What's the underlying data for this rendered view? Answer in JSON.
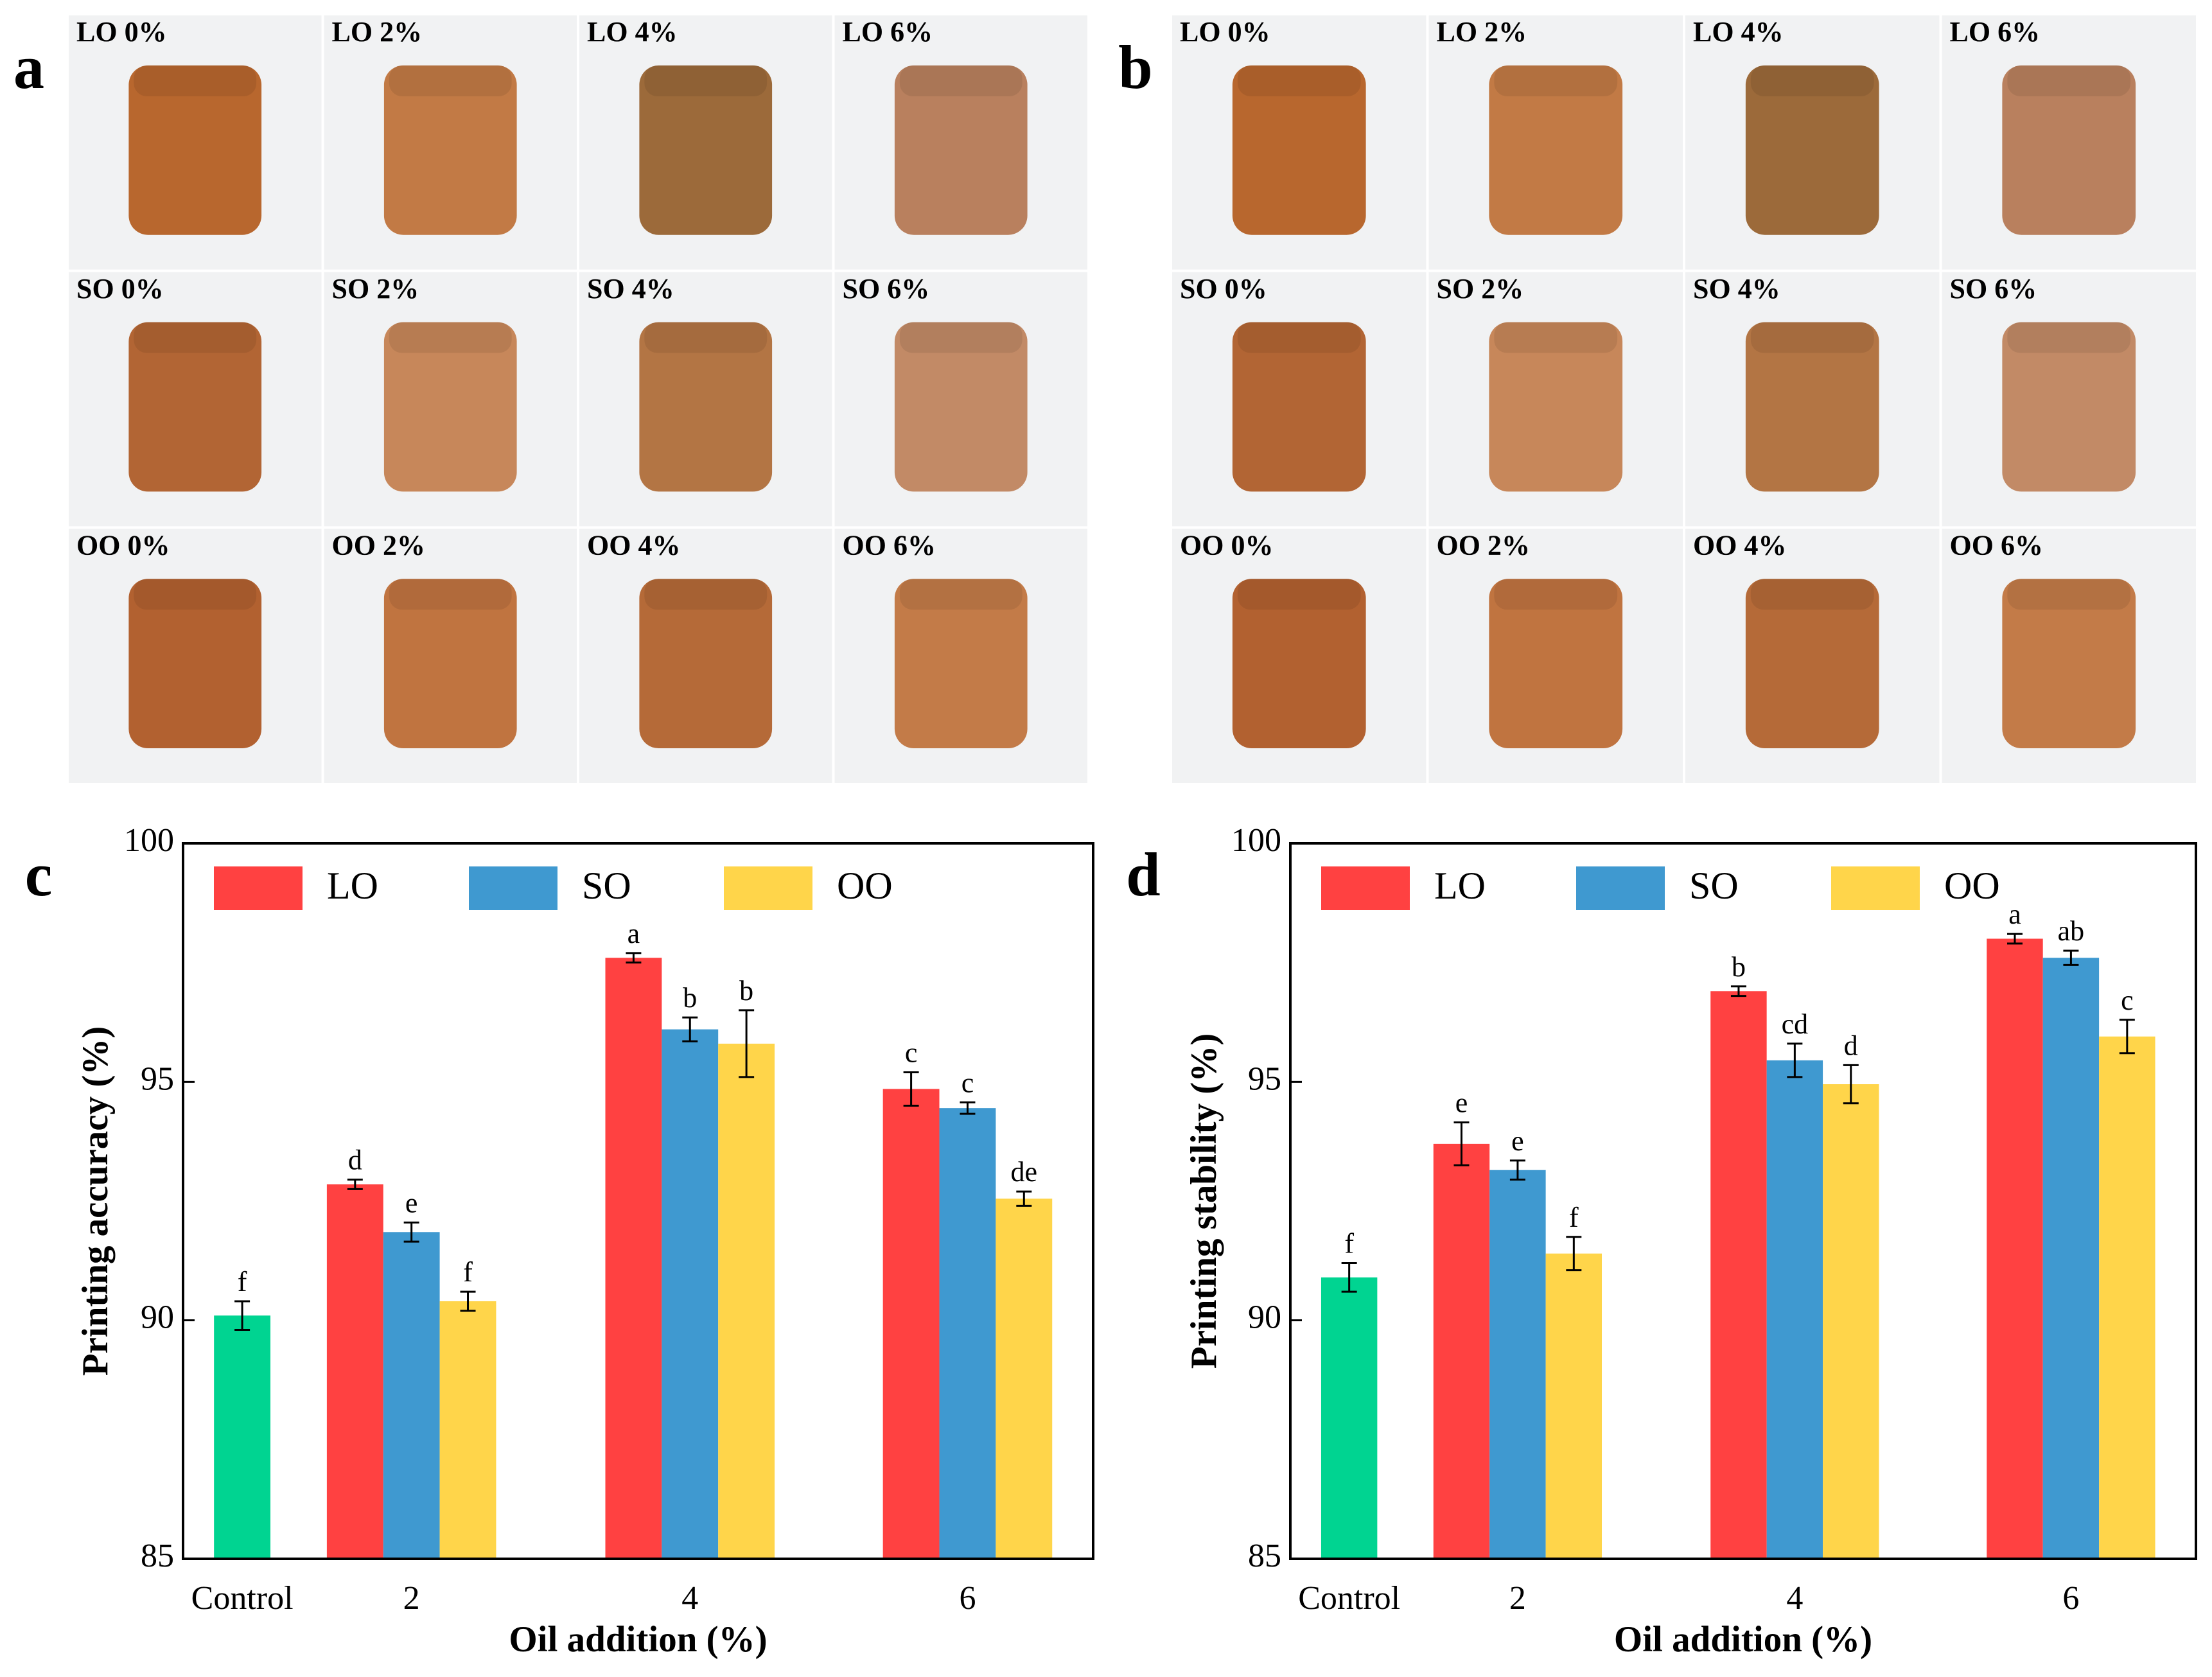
{
  "photo_panels": [
    {
      "label": "a",
      "cells": [
        "LO 0%",
        "LO 2%",
        "LO 4%",
        "LO 6%",
        "SO 0%",
        "SO 2%",
        "SO 4%",
        "SO 6%",
        "OO 0%",
        "OO 2%",
        "OO 4%",
        "OO 6%"
      ]
    },
    {
      "label": "b",
      "cells": [
        "LO 0%",
        "LO 2%",
        "LO 4%",
        "LO 6%",
        "SO 0%",
        "SO 2%",
        "SO 4%",
        "SO 6%",
        "OO 0%",
        "OO 2%",
        "OO 4%",
        "OO 6%"
      ]
    }
  ],
  "chart_data": [
    {
      "type": "bar",
      "panel": "c",
      "x_label": "Oil addition (%)",
      "y_label": "Printing accuracy (%)",
      "categories": [
        "Control",
        "2",
        "4",
        "6"
      ],
      "control": {
        "value": 90.1,
        "error": 0.3,
        "letter": "f",
        "color": "#00d491"
      },
      "series": [
        {
          "name": "LO",
          "color": "#ff4141",
          "values": [
            null,
            92.85,
            97.6,
            94.85
          ],
          "errors": [
            null,
            0.1,
            0.1,
            0.35
          ],
          "letters": [
            null,
            "d",
            "a",
            "c"
          ]
        },
        {
          "name": "SO",
          "color": "#3f99d0",
          "values": [
            null,
            91.85,
            96.1,
            94.45
          ],
          "errors": [
            null,
            0.2,
            0.25,
            0.12
          ],
          "letters": [
            null,
            "e",
            "b",
            "c"
          ]
        },
        {
          "name": "OO",
          "color": "#ffd54a",
          "values": [
            null,
            90.4,
            95.8,
            92.55
          ],
          "errors": [
            null,
            0.2,
            0.7,
            0.15
          ],
          "letters": [
            null,
            "f",
            "b",
            "de"
          ]
        }
      ],
      "ylim": [
        85,
        100
      ],
      "yticks": [
        85,
        90,
        95,
        100
      ],
      "legend": "top"
    },
    {
      "type": "bar",
      "panel": "d",
      "x_label": "Oil addition (%)",
      "y_label": "Printing stability (%)",
      "categories": [
        "Control",
        "2",
        "4",
        "6"
      ],
      "control": {
        "value": 90.9,
        "error": 0.3,
        "letter": "f",
        "color": "#00d491"
      },
      "series": [
        {
          "name": "LO",
          "color": "#ff4141",
          "values": [
            null,
            93.7,
            96.9,
            98.0
          ],
          "errors": [
            null,
            0.45,
            0.1,
            0.1
          ],
          "letters": [
            null,
            "e",
            "b",
            "a"
          ]
        },
        {
          "name": "SO",
          "color": "#3f99d0",
          "values": [
            null,
            93.15,
            95.45,
            97.6
          ],
          "errors": [
            null,
            0.2,
            0.35,
            0.15
          ],
          "letters": [
            null,
            "e",
            "cd",
            "ab"
          ]
        },
        {
          "name": "OO",
          "color": "#ffd54a",
          "values": [
            null,
            91.4,
            94.95,
            95.95
          ],
          "errors": [
            null,
            0.35,
            0.4,
            0.35
          ],
          "letters": [
            null,
            "f",
            "d",
            "c"
          ]
        }
      ],
      "ylim": [
        85,
        100
      ],
      "yticks": [
        85,
        90,
        95,
        100
      ],
      "legend": "top"
    }
  ]
}
